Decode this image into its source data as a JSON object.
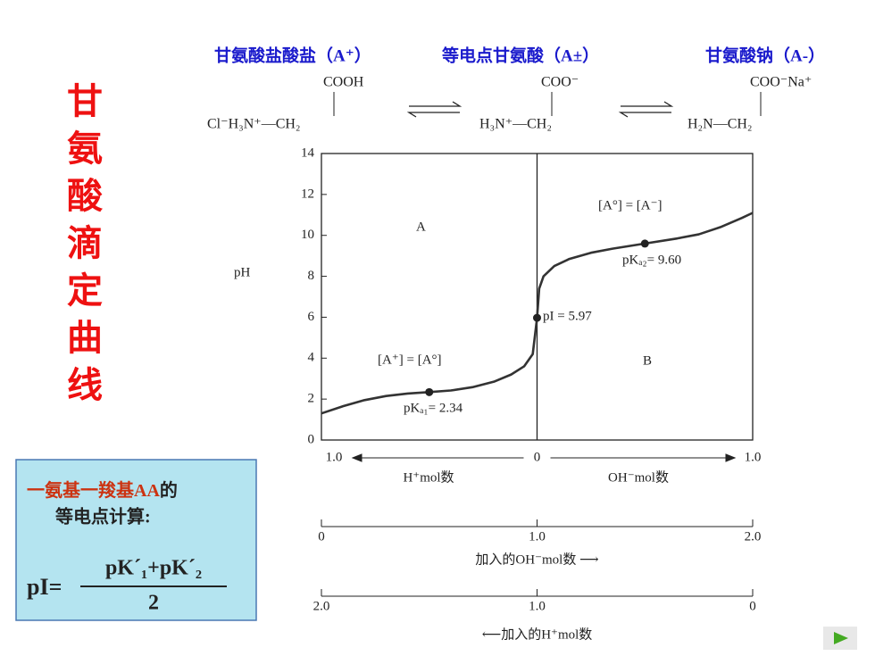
{
  "title": "甘氨酸滴定曲线",
  "species": [
    {
      "name": "甘氨酸盐酸盐（A⁺）",
      "top": "COOH",
      "bottom": "Cl⁻H₃N⁺—CH₂"
    },
    {
      "name": "等电点甘氨酸（A±）",
      "top": "COO⁻",
      "bottom": "H₃N⁺—CH₂"
    },
    {
      "name": "甘氨酸钠（A-）",
      "top": "COO⁻Na⁺",
      "bottom": "H₂N—CH₂"
    }
  ],
  "chart_data": {
    "type": "line",
    "ylabel": "pH",
    "ylim": [
      0,
      14
    ],
    "yticks": [
      0,
      2,
      4,
      6,
      8,
      10,
      12,
      14
    ],
    "xlim": [
      0,
      2
    ],
    "xticks": [
      {
        "value": 0,
        "label": "1.0"
      },
      {
        "value": 1,
        "label": "0"
      },
      {
        "value": 2,
        "label": "1.0"
      }
    ],
    "xlabel_left": "H⁺mol数",
    "xlabel_right": "OH⁻mol数",
    "extra_axes": [
      {
        "label": "加入的OH⁻mol数 ⟶",
        "ticks": [
          0,
          {
            "value": 1,
            "label": "1.0"
          },
          {
            "value": 2,
            "label": "2.0"
          }
        ]
      },
      {
        "label": "⟵加入的H⁺mol数",
        "ticks": [
          {
            "value": 0,
            "label": "2.0"
          },
          {
            "value": 1,
            "label": "1.0"
          },
          {
            "value": 2,
            "label": "0"
          }
        ]
      }
    ],
    "series": [
      {
        "color": "#333333",
        "x": [
          0,
          0.1,
          0.2,
          0.3,
          0.4,
          0.5,
          0.6,
          0.7,
          0.8,
          0.88,
          0.94,
          0.98,
          1.0,
          1.01,
          1.03,
          1.08,
          1.15,
          1.25,
          1.35,
          1.5,
          1.65,
          1.75,
          1.85,
          1.95,
          2.0
        ],
        "values": [
          1.3,
          1.65,
          1.95,
          2.15,
          2.27,
          2.34,
          2.42,
          2.58,
          2.85,
          3.2,
          3.6,
          4.2,
          5.97,
          7.4,
          8.0,
          8.5,
          8.85,
          9.15,
          9.35,
          9.6,
          9.85,
          10.05,
          10.4,
          10.85,
          11.1
        ]
      }
    ],
    "key_points": {
      "x": [
        0.5,
        1,
        1.5
      ],
      "values": [
        2.34,
        5.97,
        9.6
      ]
    },
    "annotations": [
      "A",
      "B",
      "[A⁺] = [A°]",
      "pKₐ₁= 2.34",
      "pI = 5.97",
      "[A°] = [A⁻]",
      "pKₐ₂= 9.60"
    ]
  },
  "formula_box": {
    "line1_highlight": "一氨基一羧基AA",
    "line1_rest": "的",
    "line2": "等电点计算:",
    "lhs": "pI=",
    "numerator": "pK´₁+pK´₂",
    "denominator": "2"
  }
}
